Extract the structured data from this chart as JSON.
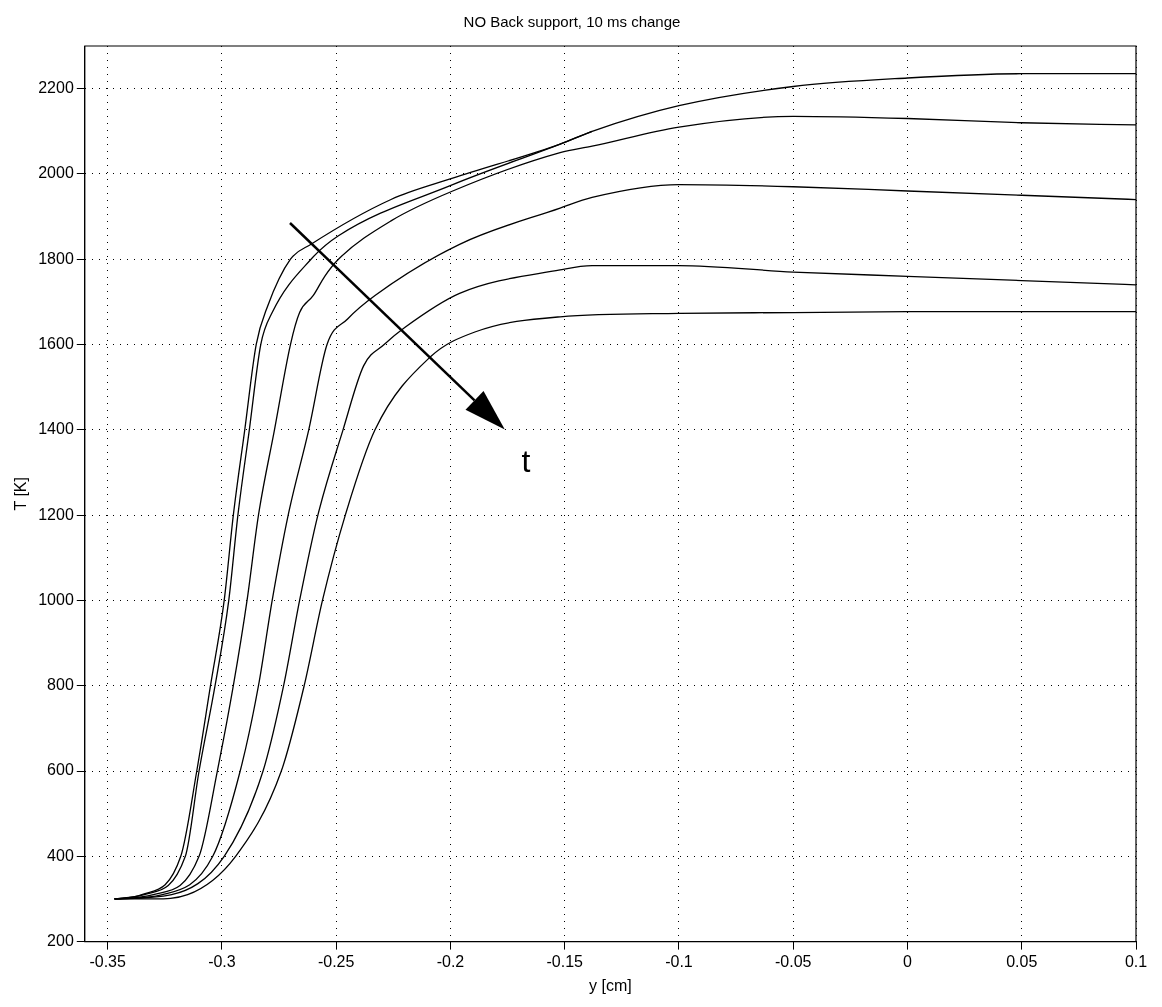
{
  "chart_data": {
    "type": "line",
    "title": "NO Back support, 10 ms change",
    "xlabel": "y [cm]",
    "ylabel": "T [K]",
    "xlim": [
      -0.36,
      0.1
    ],
    "ylim": [
      200,
      2300
    ],
    "xticks": [
      -0.35,
      -0.3,
      -0.25,
      -0.2,
      -0.15,
      -0.1,
      -0.05,
      0,
      0.05,
      0.1
    ],
    "yticks": [
      200,
      400,
      600,
      800,
      1000,
      1200,
      1400,
      1600,
      1800,
      2000,
      2200
    ],
    "grid": true,
    "legend": false,
    "marker": "none",
    "line_style": "solid",
    "annotations": [
      "t"
    ],
    "series": [
      {
        "color": "#000000",
        "x": [
          -0.347,
          -0.335,
          -0.318,
          -0.311,
          -0.305,
          -0.299,
          -0.295,
          -0.29,
          -0.285,
          -0.28,
          -0.27,
          -0.261,
          -0.226,
          -0.199,
          -0.152,
          -0.138,
          -0.1,
          -0.05,
          0,
          0.05,
          0.1
        ],
        "values": [
          300,
          310,
          400,
          600,
          800,
          1000,
          1200,
          1400,
          1600,
          1690,
          1800,
          1835,
          1940,
          1990,
          2070,
          2100,
          2160,
          2205,
          2225,
          2235,
          2235
        ]
      },
      {
        "color": "#000000",
        "x": [
          -0.347,
          -0.334,
          -0.316,
          -0.31,
          -0.303,
          -0.297,
          -0.293,
          -0.288,
          -0.283,
          -0.278,
          -0.261,
          -0.249,
          -0.199,
          -0.152,
          -0.138
        ],
        "values": [
          300,
          310,
          400,
          600,
          800,
          1000,
          1200,
          1400,
          1600,
          1675,
          1800,
          1855,
          1975,
          2070,
          2100
        ]
      },
      {
        "color": "#000000",
        "x": [
          -0.347,
          -0.33,
          -0.31,
          -0.302,
          -0.295,
          -0.289,
          -0.284,
          -0.277,
          -0.27,
          -0.266,
          -0.26,
          -0.255,
          -0.249,
          -0.226,
          -0.199,
          -0.152,
          -0.138,
          -0.1,
          -0.05,
          0,
          0.05,
          0.1
        ],
        "values": [
          300,
          310,
          400,
          600,
          800,
          1000,
          1200,
          1400,
          1600,
          1675,
          1715,
          1760,
          1800,
          1890,
          1960,
          2050,
          2065,
          2110,
          2135,
          2130,
          2120,
          2115
        ]
      },
      {
        "color": "#000000",
        "x": [
          -0.347,
          -0.326,
          -0.304,
          -0.292,
          -0.284,
          -0.278,
          -0.271,
          -0.262,
          -0.254,
          -0.245,
          -0.233,
          -0.196,
          -0.152,
          -0.138,
          -0.1,
          -0.05,
          0,
          0.05,
          0.1
        ],
        "values": [
          300,
          310,
          400,
          600,
          800,
          1000,
          1200,
          1400,
          1600,
          1660,
          1715,
          1835,
          1920,
          1945,
          1975,
          1970,
          1960,
          1950,
          1940
        ]
      },
      {
        "color": "#000000",
        "x": [
          -0.347,
          -0.322,
          -0.299,
          -0.282,
          -0.273,
          -0.266,
          -0.258,
          -0.247,
          -0.238,
          -0.229,
          -0.22,
          -0.196,
          -0.152,
          -0.138,
          -0.1,
          -0.05,
          0,
          0.05,
          0.1
        ],
        "values": [
          300,
          310,
          400,
          600,
          800,
          1000,
          1200,
          1400,
          1550,
          1600,
          1640,
          1720,
          1775,
          1785,
          1785,
          1770,
          1760,
          1750,
          1740
        ]
      },
      {
        "color": "#000000",
        "x": [
          -0.347,
          -0.33,
          -0.315,
          -0.294,
          -0.274,
          -0.264,
          -0.256,
          -0.246,
          -0.233,
          -0.209,
          -0.189,
          -0.152,
          -0.1,
          -0.05,
          0,
          0.05,
          0.1
        ],
        "values": [
          300,
          300,
          310,
          400,
          600,
          800,
          1000,
          1200,
          1400,
          1570,
          1630,
          1665,
          1673,
          1675,
          1677,
          1677,
          1677
        ]
      }
    ]
  }
}
